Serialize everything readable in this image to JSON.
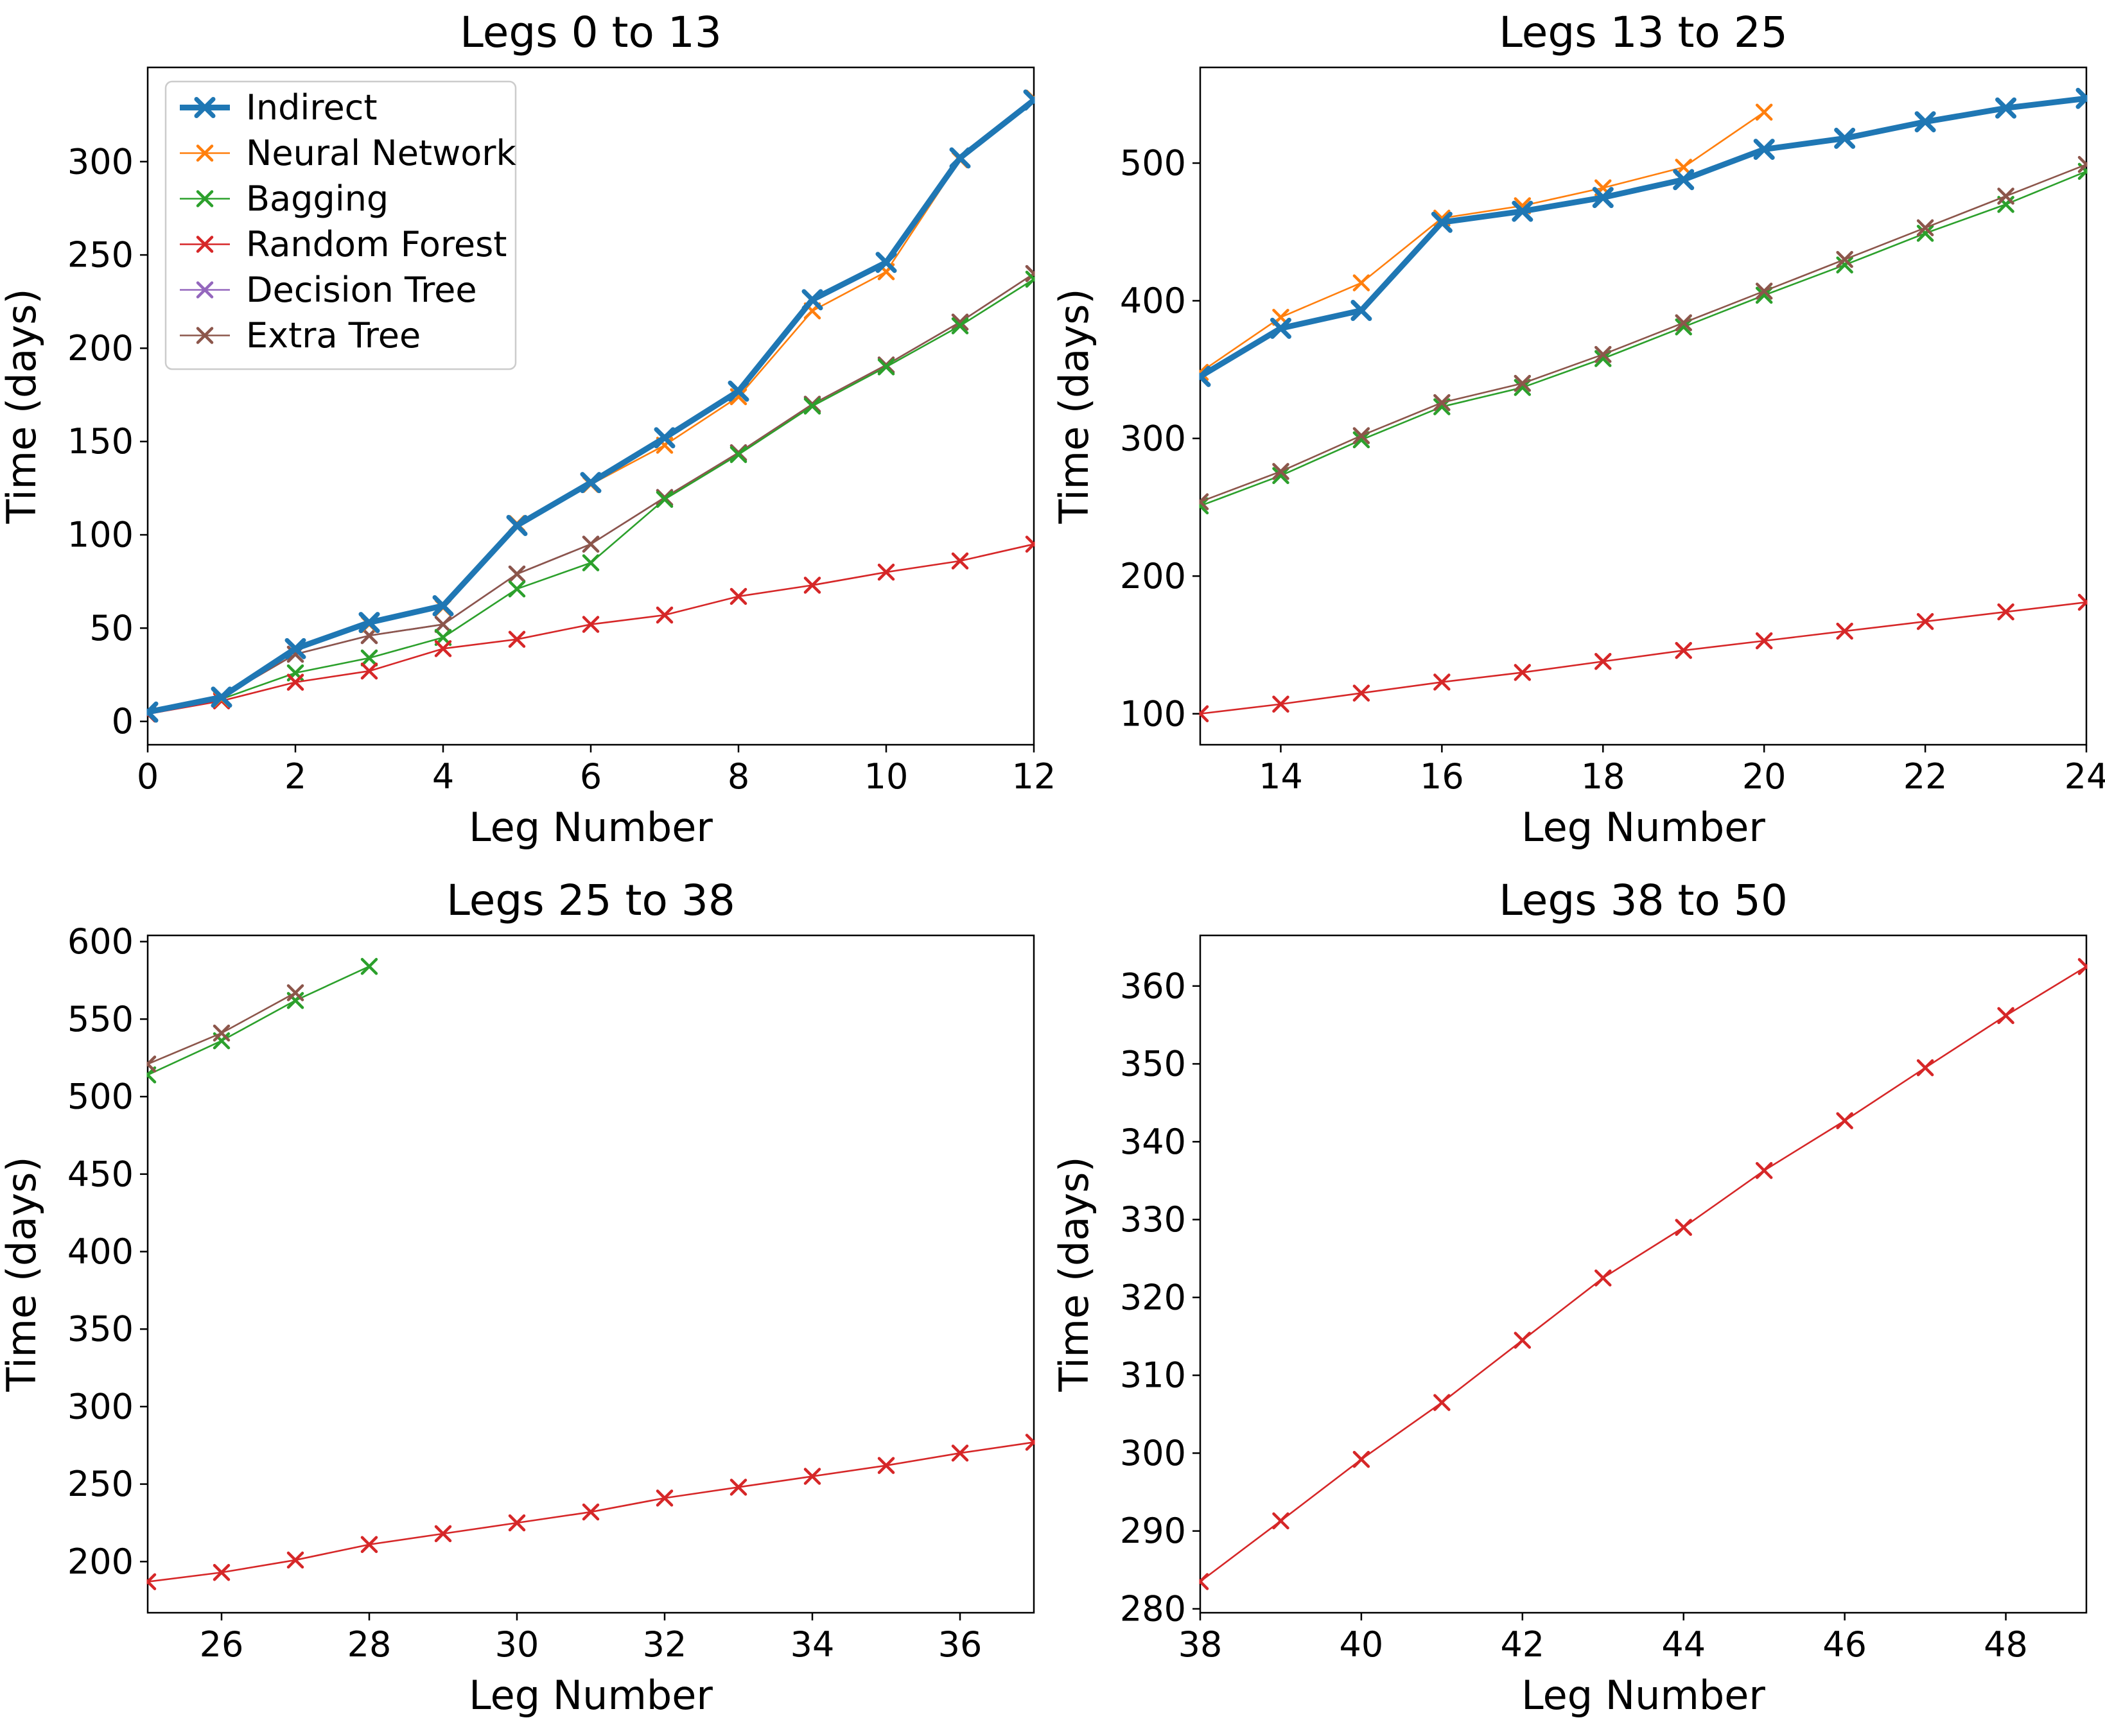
{
  "figure": {
    "background": "#ffffff",
    "grid": "2x2",
    "marker_style": "x"
  },
  "palette": {
    "indirect_blue": "#1f77b4",
    "neural_network_orange": "#ff7f0e",
    "bagging_green": "#2ca02c",
    "random_forest_red": "#d62728",
    "decision_tree_purple": "#9467bd",
    "extra_tree_brown": "#8c564b",
    "axis_black": "#000000",
    "legend_border": "#cccccc"
  },
  "legend": {
    "position": "upper left",
    "entries": [
      "Indirect",
      "Neural Network",
      "Bagging",
      "Random Forest",
      "Decision Tree",
      "Extra Tree"
    ]
  },
  "chart_data": [
    {
      "type": "line",
      "title": "Legs 0 to 13",
      "xlabel": "Leg Number",
      "ylabel": "Time (days)",
      "xlim": [
        0,
        12
      ],
      "ylim": [
        -12.5,
        350.5
      ],
      "xticks": [
        0,
        2,
        4,
        6,
        8,
        10,
        12
      ],
      "yticks": [
        0,
        50,
        100,
        150,
        200,
        250,
        300
      ],
      "grid": false,
      "show_legend": true,
      "series": [
        {
          "name": "Decision Tree",
          "color": "#9467bd",
          "thick": false,
          "x": [
            0,
            1,
            2,
            3,
            4,
            5,
            6,
            7,
            8,
            9,
            10,
            11,
            12
          ],
          "y": [
            5,
            13,
            36,
            46,
            52,
            79,
            95,
            120,
            144,
            170,
            191,
            214,
            240
          ]
        },
        {
          "name": "Extra Tree",
          "color": "#8c564b",
          "thick": false,
          "x": [
            0,
            1,
            2,
            3,
            4,
            5,
            6,
            7,
            8,
            9,
            10,
            11,
            12
          ],
          "y": [
            5,
            13,
            36,
            46,
            52,
            79,
            95,
            120,
            144,
            170,
            191,
            214,
            240
          ]
        },
        {
          "name": "Bagging",
          "color": "#2ca02c",
          "thick": false,
          "x": [
            0,
            1,
            2,
            3,
            4,
            5,
            6,
            7,
            8,
            9,
            10,
            11,
            12
          ],
          "y": [
            4,
            12,
            26,
            34,
            45,
            71,
            85,
            119,
            143,
            169,
            190,
            212,
            237
          ]
        },
        {
          "name": "Random Forest",
          "color": "#d62728",
          "thick": false,
          "x": [
            0,
            1,
            2,
            3,
            4,
            5,
            6,
            7,
            8,
            9,
            10,
            11,
            12
          ],
          "y": [
            4,
            11,
            21,
            27,
            39,
            44,
            52,
            57,
            67,
            73,
            80,
            86,
            95
          ]
        },
        {
          "name": "Neural Network",
          "color": "#ff7f0e",
          "thick": false,
          "x": [
            0,
            1,
            2,
            3,
            4,
            5,
            6,
            7,
            8,
            9,
            10,
            11,
            12
          ],
          "y": [
            5,
            12,
            39,
            52,
            61,
            106,
            127,
            148,
            174,
            220,
            241,
            301,
            334
          ]
        },
        {
          "name": "Indirect",
          "color": "#1f77b4",
          "thick": true,
          "x": [
            0,
            1,
            2,
            3,
            4,
            5,
            6,
            7,
            8,
            9,
            10,
            11,
            12
          ],
          "y": [
            5,
            13,
            39,
            53,
            62,
            105,
            128,
            152,
            177,
            226,
            246,
            302,
            333
          ]
        }
      ]
    },
    {
      "type": "line",
      "title": "Legs 13 to 25",
      "xlabel": "Leg Number",
      "ylabel": "Time (days)",
      "xlim": [
        13,
        24
      ],
      "ylim": [
        77.5,
        569.5
      ],
      "xticks": [
        14,
        16,
        18,
        20,
        22,
        24
      ],
      "yticks": [
        100,
        200,
        300,
        400,
        500
      ],
      "grid": false,
      "show_legend": false,
      "series": [
        {
          "name": "Bagging",
          "color": "#2ca02c",
          "thick": false,
          "x": [
            13,
            14,
            15,
            16,
            17,
            18,
            19,
            20,
            21,
            22,
            23,
            24
          ],
          "y": [
            251,
            273,
            299,
            323,
            337,
            358,
            381,
            404,
            426,
            449,
            470,
            494
          ]
        },
        {
          "name": "Extra Tree",
          "color": "#8c564b",
          "thick": false,
          "x": [
            13,
            14,
            15,
            16,
            17,
            18,
            19,
            20,
            21,
            22,
            23,
            24
          ],
          "y": [
            254,
            276,
            302,
            326,
            340,
            361,
            384,
            407,
            430,
            453,
            476,
            499
          ]
        },
        {
          "name": "Random Forest",
          "color": "#d62728",
          "thick": false,
          "x": [
            13,
            14,
            15,
            16,
            17,
            18,
            19,
            20,
            21,
            22,
            23,
            24
          ],
          "y": [
            100,
            107,
            115,
            123,
            130,
            138,
            146,
            153,
            160,
            167,
            174,
            181
          ]
        },
        {
          "name": "Neural Network",
          "color": "#ff7f0e",
          "thick": false,
          "x": [
            13,
            14,
            15,
            16,
            17,
            18,
            19,
            20
          ],
          "y": [
            348,
            388,
            413,
            460,
            469,
            482,
            497,
            537
          ]
        },
        {
          "name": "Indirect",
          "color": "#1f77b4",
          "thick": true,
          "x": [
            13,
            14,
            15,
            16,
            17,
            18,
            19,
            20,
            21,
            22,
            23,
            24
          ],
          "y": [
            345,
            380,
            393,
            457,
            465,
            475,
            488,
            510,
            518,
            530,
            540,
            547
          ]
        }
      ]
    },
    {
      "type": "line",
      "title": "Legs 25 to 38",
      "xlabel": "Leg Number",
      "ylabel": "Time (days)",
      "xlim": [
        25,
        37
      ],
      "ylim": [
        167,
        604
      ],
      "xticks": [
        26,
        28,
        30,
        32,
        34,
        36
      ],
      "yticks": [
        200,
        250,
        300,
        350,
        400,
        450,
        500,
        550,
        600
      ],
      "grid": false,
      "show_legend": false,
      "series": [
        {
          "name": "Bagging",
          "color": "#2ca02c",
          "thick": false,
          "x": [
            25,
            26,
            27,
            28
          ],
          "y": [
            514,
            536,
            562,
            584
          ]
        },
        {
          "name": "Extra Tree",
          "color": "#8c564b",
          "thick": false,
          "x": [
            25,
            26,
            27
          ],
          "y": [
            521,
            541,
            567
          ]
        },
        {
          "name": "Random Forest",
          "color": "#d62728",
          "thick": false,
          "x": [
            25,
            26,
            27,
            28,
            29,
            30,
            31,
            32,
            33,
            34,
            35,
            36,
            37
          ],
          "y": [
            187,
            193,
            201,
            211,
            218,
            225,
            232,
            241,
            248,
            255,
            262,
            270,
            277
          ]
        }
      ]
    },
    {
      "type": "line",
      "title": "Legs 38 to 50",
      "xlabel": "Leg Number",
      "ylabel": "Time (days)",
      "xlim": [
        38,
        49
      ],
      "ylim": [
        279.5,
        366.5
      ],
      "xticks": [
        38,
        40,
        42,
        44,
        46,
        48
      ],
      "yticks": [
        280,
        290,
        300,
        310,
        320,
        330,
        340,
        350,
        360
      ],
      "grid": false,
      "show_legend": false,
      "series": [
        {
          "name": "Random Forest",
          "color": "#d62728",
          "thick": false,
          "x": [
            38,
            39,
            40,
            41,
            42,
            43,
            44,
            45,
            46,
            47,
            48,
            49
          ],
          "y": [
            283.5,
            291.3,
            299.2,
            306.5,
            314.5,
            322.5,
            329,
            336.3,
            342.7,
            349.5,
            356.2,
            362.5
          ]
        }
      ]
    }
  ]
}
